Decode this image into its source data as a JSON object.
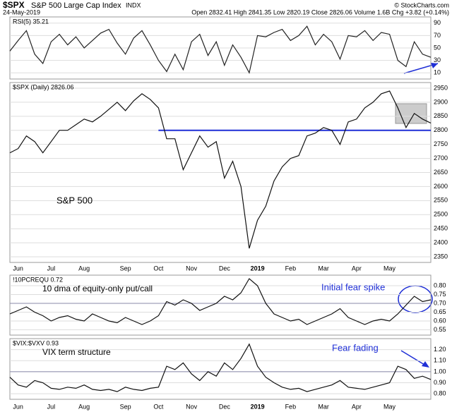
{
  "header": {
    "symbol": "$SPX",
    "name": "S&P 500 Large Cap Index",
    "exchange": "INDX",
    "date": "24-May-2019",
    "quote": "Open 2832.41 High 2841.35 Low 2820.19 Close 2826.06 Volume 1.6B Chg +3.82 (+0.14%)",
    "credit": "© StockCharts.com"
  },
  "chart_data": [
    {
      "type": "line",
      "label": "RSI(5) 35.21",
      "color": "#222222",
      "ylim": [
        0,
        100
      ],
      "yticks": [
        10,
        30,
        50,
        70,
        90
      ],
      "values": [
        45,
        62,
        78,
        40,
        25,
        60,
        72,
        55,
        68,
        50,
        62,
        74,
        80,
        58,
        40,
        66,
        78,
        55,
        30,
        12,
        40,
        15,
        60,
        72,
        38,
        60,
        22,
        55,
        35,
        10,
        70,
        68,
        75,
        80,
        62,
        70,
        85,
        55,
        72,
        60,
        32,
        70,
        68,
        78,
        62,
        75,
        72,
        30,
        20,
        60,
        40,
        35
      ]
    },
    {
      "type": "line",
      "label": "$SPX (Daily) 2826.06",
      "annotation": "S&P 500",
      "color": "#111111",
      "reference": 2800,
      "reference_color": "#1f2fd6",
      "ylim": [
        2330,
        2970
      ],
      "yticks": [
        2350,
        2400,
        2450,
        2500,
        2550,
        2600,
        2650,
        2700,
        2750,
        2800,
        2850,
        2900,
        2950
      ],
      "categories": [
        null,
        "Jun",
        null,
        null,
        null,
        "Jul",
        null,
        null,
        null,
        "Aug",
        null,
        null,
        null,
        null,
        "Sep",
        null,
        null,
        null,
        "Oct",
        null,
        null,
        null,
        "Nov",
        null,
        null,
        null,
        "Dec",
        null,
        null,
        null,
        "2019",
        null,
        null,
        null,
        "Feb",
        null,
        null,
        null,
        "Mar",
        null,
        null,
        null,
        "Apr",
        null,
        null,
        null,
        "May",
        null,
        null,
        null,
        null,
        null
      ],
      "values": [
        2720,
        2735,
        2780,
        2760,
        2720,
        2760,
        2800,
        2800,
        2820,
        2840,
        2830,
        2850,
        2875,
        2900,
        2870,
        2905,
        2930,
        2910,
        2880,
        2770,
        2770,
        2660,
        2720,
        2780,
        2740,
        2760,
        2630,
        2690,
        2600,
        2380,
        2480,
        2530,
        2620,
        2670,
        2700,
        2710,
        2780,
        2790,
        2810,
        2800,
        2750,
        2830,
        2840,
        2880,
        2900,
        2930,
        2940,
        2880,
        2810,
        2860,
        2840,
        2826
      ]
    },
    {
      "type": "line",
      "label": "!10PCREQU 0.72",
      "annotation": "10 dma of equity-only put/call",
      "annotation2": "Initial fear spike",
      "color": "#111111",
      "reference": 0.7,
      "reference_color": "#8888aa",
      "ylim": [
        0.52,
        0.86
      ],
      "yticks": [
        0.55,
        {
          "value": 0.6,
          "label": "0.60"
        },
        0.65,
        {
          "value": 0.7,
          "label": "0.70"
        },
        0.75,
        {
          "value": 0.8,
          "label": "0.80"
        }
      ],
      "values": [
        0.64,
        0.66,
        0.68,
        0.65,
        0.63,
        0.6,
        0.62,
        0.63,
        0.61,
        0.6,
        0.64,
        0.62,
        0.6,
        0.59,
        0.62,
        0.6,
        0.58,
        0.6,
        0.63,
        0.71,
        0.69,
        0.72,
        0.7,
        0.66,
        0.68,
        0.7,
        0.74,
        0.72,
        0.76,
        0.84,
        0.8,
        0.7,
        0.64,
        0.62,
        0.6,
        0.61,
        0.58,
        0.6,
        0.62,
        0.64,
        0.67,
        0.62,
        0.6,
        0.58,
        0.6,
        0.61,
        0.6,
        0.64,
        0.69,
        0.74,
        0.71,
        0.72
      ]
    },
    {
      "type": "line",
      "label": "$VIX:$VXV 0.93",
      "annotation": "VIX term structure",
      "annotation2": "Fear fading",
      "color": "#111111",
      "reference": 1.0,
      "reference_color": "#8888aa",
      "ylim": [
        0.75,
        1.3
      ],
      "yticks": [
        {
          "value": 0.8,
          "label": "0.80"
        },
        {
          "value": 0.9,
          "label": "0.90"
        },
        {
          "value": 1.0,
          "label": "1.00"
        },
        {
          "value": 1.1,
          "label": "1.10"
        },
        {
          "value": 1.2,
          "label": "1.20"
        }
      ],
      "categories": [
        null,
        "Jun",
        null,
        null,
        null,
        "Jul",
        null,
        null,
        null,
        "Aug",
        null,
        null,
        null,
        null,
        "Sep",
        null,
        null,
        null,
        "Oct",
        null,
        null,
        null,
        "Nov",
        null,
        null,
        null,
        "Dec",
        null,
        null,
        null,
        "2019",
        null,
        null,
        null,
        "Feb",
        null,
        null,
        null,
        "Mar",
        null,
        null,
        null,
        "Apr",
        null,
        null,
        null,
        "May",
        null,
        null,
        null,
        null,
        null
      ],
      "values": [
        0.95,
        0.88,
        0.86,
        0.92,
        0.9,
        0.85,
        0.84,
        0.86,
        0.85,
        0.88,
        0.84,
        0.83,
        0.84,
        0.82,
        0.86,
        0.84,
        0.83,
        0.85,
        0.86,
        1.05,
        1.02,
        1.08,
        0.98,
        0.92,
        1.0,
        0.96,
        1.08,
        1.02,
        1.12,
        1.25,
        1.05,
        0.95,
        0.9,
        0.86,
        0.84,
        0.85,
        0.82,
        0.84,
        0.86,
        0.88,
        0.92,
        0.86,
        0.85,
        0.84,
        0.86,
        0.88,
        0.9,
        1.05,
        1.02,
        0.94,
        0.96,
        0.93
      ]
    }
  ]
}
